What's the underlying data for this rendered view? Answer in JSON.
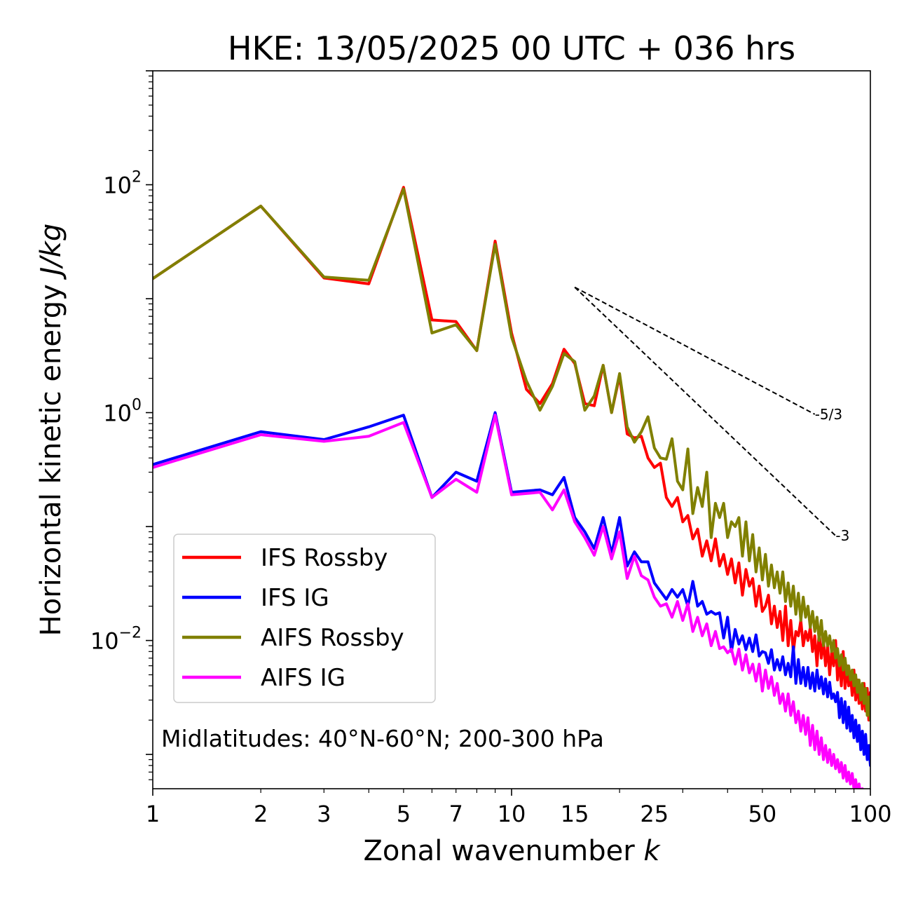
{
  "chart_data": {
    "type": "line",
    "title": "HKE: 13/05/2025 00 UTC + 036 hrs",
    "xlabel": "Zonal wavenumber",
    "xlabel_var": "k",
    "ylabel": "Horizontal kinetic energy",
    "ylabel_unit": "J/kg",
    "xscale": "log",
    "yscale": "log",
    "xlim": [
      1,
      100
    ],
    "ylim": [
      0.0005,
      1000
    ],
    "x_ticks": [
      1,
      2,
      3,
      5,
      7,
      10,
      15,
      25,
      50,
      100
    ],
    "x_tick_labels": [
      "1",
      "2",
      "3",
      "5",
      "7",
      "10",
      "15",
      "25",
      "50",
      "100"
    ],
    "y_ticks": [
      {
        "value": 100,
        "base": "10",
        "exp": "2"
      },
      {
        "value": 1,
        "base": "10",
        "exp": "0"
      },
      {
        "value": 0.01,
        "base": "10",
        "exp": "−2"
      }
    ],
    "grid": false,
    "legend_position": "lower-left",
    "annotation": "Midlatitudes: 40°N-60°N; 200-300 hPa",
    "reference_lines": [
      {
        "label": "-5/3",
        "slope": -1.6667,
        "x_start": 15,
        "y_start": 12.6,
        "x_end": 70
      },
      {
        "label": "-3",
        "slope": -3,
        "x_start": 15,
        "y_start": 12.6,
        "x_end": 80
      }
    ],
    "x": [
      1,
      2,
      3,
      4,
      5,
      6,
      7,
      8,
      9,
      10,
      11,
      12,
      13,
      14,
      15,
      16,
      17,
      18,
      19,
      20,
      21,
      22,
      23,
      24,
      25,
      26,
      27,
      28,
      29,
      30,
      31,
      32,
      33,
      34,
      35,
      36,
      37,
      38,
      39,
      40,
      41,
      42,
      43,
      44,
      45,
      46,
      47,
      48,
      49,
      50,
      51,
      52,
      53,
      54,
      55,
      56,
      57,
      58,
      59,
      60,
      61,
      62,
      63,
      64,
      65,
      66,
      67,
      68,
      69,
      70,
      71,
      72,
      73,
      74,
      75,
      76,
      77,
      78,
      79,
      80,
      81,
      82,
      83,
      84,
      85,
      86,
      87,
      88,
      89,
      90,
      91,
      92,
      93,
      94,
      95,
      96,
      97,
      98,
      99,
      100
    ],
    "series": [
      {
        "name": "IFS Rossby",
        "color": "#ff0000",
        "values": [
          15.0,
          65.0,
          15.2,
          13.5,
          95.0,
          6.5,
          6.3,
          3.5,
          32.0,
          5.0,
          1.6,
          1.2,
          1.8,
          3.6,
          2.7,
          1.2,
          1.15,
          2.6,
          1.0,
          2.1,
          0.65,
          0.6,
          0.62,
          0.4,
          0.33,
          0.36,
          0.18,
          0.15,
          0.18,
          0.11,
          0.125,
          0.078,
          0.095,
          0.055,
          0.075,
          0.05,
          0.078,
          0.045,
          0.057,
          0.038,
          0.052,
          0.032,
          0.048,
          0.025,
          0.042,
          0.03,
          0.035,
          0.02,
          0.03,
          0.018,
          0.02,
          0.025,
          0.014,
          0.02,
          0.013,
          0.018,
          0.01,
          0.02,
          0.009,
          0.015,
          0.008,
          0.012,
          0.011,
          0.015,
          0.009,
          0.012,
          0.01,
          0.013,
          0.008,
          0.011,
          0.006,
          0.012,
          0.007,
          0.01,
          0.006,
          0.009,
          0.005,
          0.008,
          0.006,
          0.01,
          0.0045,
          0.007,
          0.004,
          0.008,
          0.0038,
          0.006,
          0.004,
          0.005,
          0.0033,
          0.0055,
          0.003,
          0.0045,
          0.0028,
          0.004,
          0.0025,
          0.0042,
          0.0024,
          0.0038,
          0.002,
          0.0035
        ]
      },
      {
        "name": "IFS IG",
        "color": "#0000ff",
        "values": [
          0.35,
          0.68,
          0.58,
          0.75,
          0.95,
          0.18,
          0.3,
          0.25,
          1.0,
          0.2,
          0.205,
          0.21,
          0.19,
          0.27,
          0.12,
          0.09,
          0.064,
          0.12,
          0.058,
          0.12,
          0.045,
          0.06,
          0.049,
          0.049,
          0.032,
          0.027,
          0.023,
          0.028,
          0.024,
          0.028,
          0.02,
          0.033,
          0.02,
          0.022,
          0.017,
          0.018,
          0.017,
          0.0175,
          0.0105,
          0.016,
          0.008,
          0.0125,
          0.0093,
          0.011,
          0.0083,
          0.0105,
          0.008,
          0.0112,
          0.0073,
          0.008,
          0.0078,
          0.0063,
          0.0083,
          0.0055,
          0.0068,
          0.0055,
          0.0072,
          0.005,
          0.0063,
          0.0048,
          0.0088,
          0.0042,
          0.0068,
          0.0042,
          0.0058,
          0.004,
          0.0058,
          0.0038,
          0.0052,
          0.0036,
          0.0055,
          0.0038,
          0.0048,
          0.0034,
          0.0046,
          0.0032,
          0.0043,
          0.0031,
          0.0034,
          0.0029,
          0.0035,
          0.0021,
          0.0031,
          0.0019,
          0.0029,
          0.0017,
          0.0026,
          0.0016,
          0.0022,
          0.0014,
          0.002,
          0.0013,
          0.0018,
          0.0011,
          0.0016,
          0.001,
          0.0015,
          0.0009,
          0.0012,
          0.0008
        ]
      },
      {
        "name": "AIFS Rossby",
        "color": "#808000",
        "values": [
          15.0,
          65.0,
          15.5,
          14.5,
          92.0,
          5.0,
          5.9,
          3.5,
          30.0,
          4.6,
          1.9,
          1.05,
          1.7,
          3.3,
          2.8,
          1.05,
          1.4,
          2.6,
          1.0,
          2.2,
          0.75,
          0.55,
          0.68,
          0.92,
          0.49,
          0.4,
          0.39,
          0.59,
          0.25,
          0.21,
          0.48,
          0.13,
          0.22,
          0.15,
          0.3,
          0.08,
          0.16,
          0.12,
          0.16,
          0.08,
          0.11,
          0.1,
          0.12,
          0.055,
          0.11,
          0.05,
          0.085,
          0.04,
          0.065,
          0.034,
          0.057,
          0.03,
          0.046,
          0.029,
          0.04,
          0.026,
          0.04,
          0.022,
          0.032,
          0.02,
          0.03,
          0.017,
          0.026,
          0.015,
          0.024,
          0.016,
          0.02,
          0.013,
          0.018,
          0.012,
          0.016,
          0.01,
          0.015,
          0.009,
          0.012,
          0.009,
          0.011,
          0.008,
          0.01,
          0.007,
          0.0085,
          0.006,
          0.0075,
          0.0055,
          0.007,
          0.005,
          0.006,
          0.0045,
          0.0055,
          0.004,
          0.005,
          0.0035,
          0.0045,
          0.003,
          0.0042,
          0.0028,
          0.0038,
          0.0022,
          0.0032,
          0.002
        ]
      },
      {
        "name": "AIFS IG",
        "color": "#ff00ff",
        "values": [
          0.33,
          0.64,
          0.56,
          0.62,
          0.82,
          0.18,
          0.26,
          0.2,
          0.95,
          0.19,
          0.195,
          0.2,
          0.14,
          0.21,
          0.11,
          0.08,
          0.056,
          0.1,
          0.052,
          0.09,
          0.035,
          0.055,
          0.037,
          0.034,
          0.024,
          0.02,
          0.021,
          0.016,
          0.022,
          0.015,
          0.021,
          0.012,
          0.016,
          0.011,
          0.014,
          0.009,
          0.012,
          0.0085,
          0.0088,
          0.0078,
          0.0084,
          0.0062,
          0.0084,
          0.0055,
          0.0075,
          0.0052,
          0.0062,
          0.0044,
          0.0062,
          0.0036,
          0.0055,
          0.0038,
          0.0048,
          0.0033,
          0.0042,
          0.0028,
          0.0034,
          0.0024,
          0.0034,
          0.0022,
          0.0029,
          0.0019,
          0.0024,
          0.0016,
          0.0022,
          0.0015,
          0.0021,
          0.0012,
          0.0018,
          0.0011,
          0.0016,
          0.001,
          0.0014,
          0.0009,
          0.0012,
          0.00085,
          0.0011,
          0.0008,
          0.001,
          0.00075,
          0.0009,
          0.0007,
          0.00085,
          0.00062,
          0.0008,
          0.00058,
          0.0007,
          0.00055,
          0.00068,
          0.0005,
          0.0006,
          0.00045,
          0.00055,
          0.00042,
          0.0005,
          0.0004,
          0.00045,
          0.00038,
          0.00042,
          0.00035
        ]
      }
    ]
  }
}
